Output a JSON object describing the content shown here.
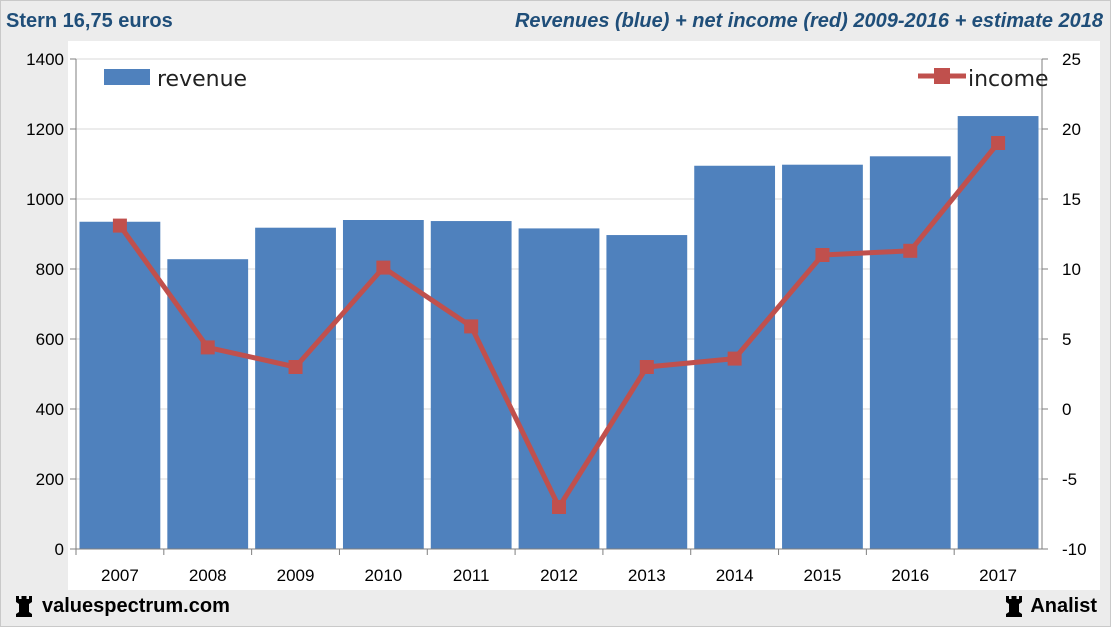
{
  "header": {
    "left_title": "Stern 16,75 euros",
    "right_title": "Revenues (blue) + net income (red) 2009-2016 + estimate 2018"
  },
  "footer": {
    "site": "valuespectrum.com",
    "brand": "Analist",
    "logo_icon": "rook-icon"
  },
  "colors": {
    "revenue": "#4f81bd",
    "income": "#c0504d",
    "title": "#1f4e79"
  },
  "chart_data": {
    "type": "bar",
    "categories": [
      "2007",
      "2008",
      "2009",
      "2010",
      "2011",
      "2012",
      "2013",
      "2014",
      "2015",
      "2016",
      "2017"
    ],
    "series": [
      {
        "name": "revenue",
        "type": "bar",
        "axis": "left",
        "values": [
          935,
          828,
          918,
          940,
          937,
          916,
          897,
          1095,
          1098,
          1122,
          1237
        ]
      },
      {
        "name": "income",
        "type": "line",
        "axis": "right",
        "values": [
          13.1,
          4.4,
          3.0,
          10.1,
          5.9,
          -7.0,
          3.0,
          3.6,
          11.0,
          11.3,
          19.0
        ]
      }
    ],
    "y_left": {
      "min": 0,
      "max": 1400,
      "ticks": [
        0,
        200,
        400,
        600,
        800,
        1000,
        1200,
        1400
      ]
    },
    "y_right": {
      "min": -10,
      "max": 25,
      "ticks": [
        -10,
        -5,
        0,
        5,
        10,
        15,
        20,
        25
      ]
    },
    "grid": true,
    "legend": {
      "revenue": "top-left",
      "income": "top-right"
    }
  }
}
